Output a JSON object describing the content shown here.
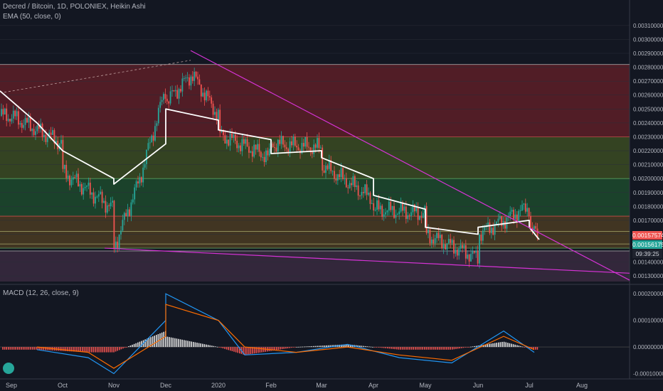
{
  "header": {
    "title": "Decred / Bitcoin, 1D, POLONIEX, Heikin Ashi",
    "ema_label": "EMA (50, close, 0)",
    "macd_label": "MACD (12, 26, close, 9)"
  },
  "price_axis": {
    "labels": [
      "0.00310000",
      "0.00300000",
      "0.00290000",
      "0.00280000",
      "0.00270000",
      "0.00260000",
      "0.00250000",
      "0.00240000",
      "0.00230000",
      "0.00220000",
      "0.00210000",
      "0.00200000",
      "0.00190000",
      "0.00180000",
      "0.00170000",
      "0.00157574",
      "0.00156175",
      "0.00140000",
      "0.00130000"
    ],
    "current_price": "0.00157574",
    "ema_value": "0.00156175",
    "countdown": "09:39:25"
  },
  "macd_axis": {
    "labels": [
      "0.00020000",
      "0.00010000",
      "0.00000000",
      "-0.00010000"
    ]
  },
  "time_axis": {
    "labels": [
      "Sep",
      "Oct",
      "Nov",
      "Dec",
      "2020",
      "Feb",
      "Mar",
      "Apr",
      "May",
      "Jun",
      "Jul",
      "Aug"
    ]
  },
  "colors": {
    "background": "#131722",
    "up": "#26a69a",
    "down": "#ef5350",
    "ema": "#ffffff",
    "trendline": "#d633d6",
    "macd": "#2196f3",
    "signal": "#ff6d00"
  },
  "chart_data": [
    {
      "type": "candlestick",
      "title": "Decred / Bitcoin, 1D, POLONIEX, Heikin Ashi",
      "x": [
        "Sep",
        "Oct",
        "Nov",
        "Dec",
        "2020",
        "Feb",
        "Mar",
        "Apr",
        "May",
        "Jun",
        "Jul",
        "Aug"
      ],
      "ylim": [
        0.00125,
        0.00313
      ],
      "close_path": [
        [
          "Aug",
          0.00245
        ],
        [
          "Sep",
          0.00245
        ],
        [
          "Sep",
          0.00225
        ],
        [
          "Oct",
          0.00205
        ],
        [
          "Oct",
          0.00178
        ],
        [
          "Nov",
          0.0015
        ],
        [
          "Nov",
          0.002
        ],
        [
          "Nov",
          0.00265
        ],
        [
          "Dec",
          0.00255
        ],
        [
          "Dec",
          0.00275
        ],
        [
          "Dec",
          0.00245
        ],
        [
          "2020",
          0.00232
        ],
        [
          "2020",
          0.00215
        ],
        [
          "Feb",
          0.00225
        ],
        [
          "Feb",
          0.00222
        ],
        [
          "Mar",
          0.0021
        ],
        [
          "Mar",
          0.00185
        ],
        [
          "Apr",
          0.00178
        ],
        [
          "Apr",
          0.00175
        ],
        [
          "May",
          0.0016
        ],
        [
          "May",
          0.00143
        ],
        [
          "Jun",
          0.0016
        ],
        [
          "Jun",
          0.0018
        ],
        [
          "Jul",
          0.00165
        ],
        [
          "Jul",
          0.00157574
        ]
      ],
      "ema": {
        "name": "EMA (50, close, 0)",
        "points": [
          [
            "Aug",
            0.00263
          ],
          [
            "Sep",
            0.0024
          ],
          [
            "Oct",
            0.0022
          ],
          [
            "Oct",
            0.002
          ],
          [
            "Nov",
            0.00196
          ],
          [
            "Nov",
            0.00225
          ],
          [
            "Dec",
            0.0025
          ],
          [
            "Dec",
            0.00242
          ],
          [
            "2020",
            0.00235
          ],
          [
            "2020",
            0.00228
          ],
          [
            "Feb",
            0.00218
          ],
          [
            "Feb",
            0.0022
          ],
          [
            "Mar",
            0.00215
          ],
          [
            "Mar",
            0.002
          ],
          [
            "Apr",
            0.00188
          ],
          [
            "Apr",
            0.00178
          ],
          [
            "May",
            0.00165
          ],
          [
            "May",
            0.0016
          ],
          [
            "Jun",
            0.00165
          ],
          [
            "Jun",
            0.0017
          ],
          [
            "Jul",
            0.00165
          ],
          [
            "Jul",
            0.00156175
          ]
        ]
      },
      "zones": [
        {
          "from": 0.0023,
          "to": 0.00282,
          "color": "#5d1f27"
        },
        {
          "from": 0.002,
          "to": 0.0023,
          "color": "#3b4b22"
        },
        {
          "from": 0.00173,
          "to": 0.002,
          "color": "#1d4a2d"
        },
        {
          "from": 0.0015,
          "to": 0.00173,
          "color": "#4a3b22"
        },
        {
          "from": 0.00126,
          "to": 0.00148,
          "color": "#3a2a40"
        }
      ],
      "horizontal_lines": [
        0.00282,
        0.0023,
        0.002,
        0.00173,
        0.00162,
        0.00153,
        0.0015,
        0.00148
      ],
      "trendlines": [
        {
          "from": [
            "Dec",
            0.00292
          ],
          "to": [
            "Aug",
            0.00127
          ]
        },
        {
          "from": [
            "Nov",
            0.0015
          ],
          "to": [
            "Aug",
            0.00132
          ]
        }
      ]
    },
    {
      "type": "line",
      "title": "MACD (12, 26, close, 9)",
      "ylim": [
        -0.00012,
        0.00023
      ],
      "series": [
        {
          "name": "MACD",
          "values": [
            [
              "Sep",
              -1e-05
            ],
            [
              "Oct",
              -4e-05
            ],
            [
              "Nov",
              -0.0001
            ],
            [
              "Nov",
              0.0001
            ],
            [
              "Dec",
              0.0002
            ],
            [
              "Dec",
              0.0001
            ],
            [
              "2020",
              -3e-05
            ],
            [
              "Feb",
              -2e-05
            ],
            [
              "Mar",
              1e-05
            ],
            [
              "Apr",
              -4e-05
            ],
            [
              "May",
              -6e-05
            ],
            [
              "Jun",
              6e-05
            ],
            [
              "Jul",
              -2e-05
            ]
          ]
        },
        {
          "name": "Signal",
          "values": [
            [
              "Sep",
              0.0
            ],
            [
              "Oct",
              -2e-05
            ],
            [
              "Nov",
              -8e-05
            ],
            [
              "Nov",
              4e-05
            ],
            [
              "Dec",
              0.00016
            ],
            [
              "Dec",
              0.0001
            ],
            [
              "2020",
              0.0
            ],
            [
              "Feb",
              -2e-05
            ],
            [
              "Mar",
              0.0
            ],
            [
              "Apr",
              -3e-05
            ],
            [
              "May",
              -5e-05
            ],
            [
              "Jun",
              4e-05
            ],
            [
              "Jul",
              -1e-05
            ]
          ]
        }
      ]
    }
  ]
}
